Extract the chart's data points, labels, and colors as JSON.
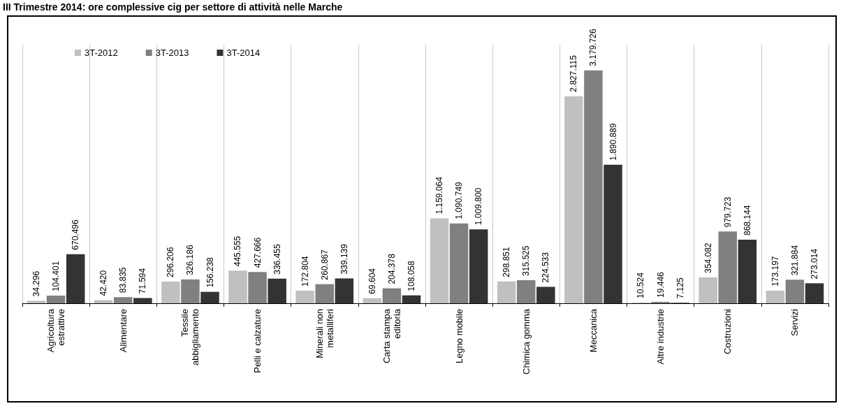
{
  "chart_data": {
    "type": "bar",
    "title": "III Trimestre 2014: ore complessive cig per settore di attività nelle Marche",
    "categories": [
      "Agricoltura estrattive",
      "Alimentare",
      "Tessile abbigliamento",
      "Pelli e calzature",
      "Minerali non metalliferi",
      "Carta stampa editoria",
      "Legno mobile",
      "Chimica gomma",
      "Meccanica",
      "Altre industrie",
      "Costruzioni",
      "Servizi"
    ],
    "series": [
      {
        "name": "3T-2012",
        "color": "#c0c0c0",
        "values": [
          34296,
          42420,
          296206,
          445555,
          172804,
          69604,
          1159064,
          298851,
          2827115,
          10524,
          354082,
          173197
        ],
        "value_labels": [
          "34.296",
          "42.420",
          "296.206",
          "445.555",
          "172.804",
          "69.604",
          "1.159.064",
          "298.851",
          "2.827.115",
          "10.524",
          "354.082",
          "173.197"
        ]
      },
      {
        "name": "3T-2013",
        "color": "#808080",
        "values": [
          104401,
          83835,
          326186,
          427666,
          260867,
          204378,
          1090749,
          315525,
          3179726,
          19446,
          979723,
          321884
        ],
        "value_labels": [
          "104.401",
          "83.835",
          "326.186",
          "427.666",
          "260.867",
          "204.378",
          "1.090.749",
          "315.525",
          "3.179.726",
          "19.446",
          "979.723",
          "321.884"
        ]
      },
      {
        "name": "3T-2014",
        "color": "#333333",
        "values": [
          670496,
          71594,
          156238,
          336455,
          339139,
          108058,
          1009800,
          224533,
          1890889,
          7125,
          868144,
          273014
        ],
        "value_labels": [
          "670.496",
          "71.594",
          "156.238",
          "336.455",
          "339.139",
          "108.058",
          "1.009.800",
          "224.533",
          "1.890.889",
          "7.125",
          "868.144",
          "273.014"
        ]
      }
    ],
    "grid": "x",
    "legend": "top left"
  }
}
